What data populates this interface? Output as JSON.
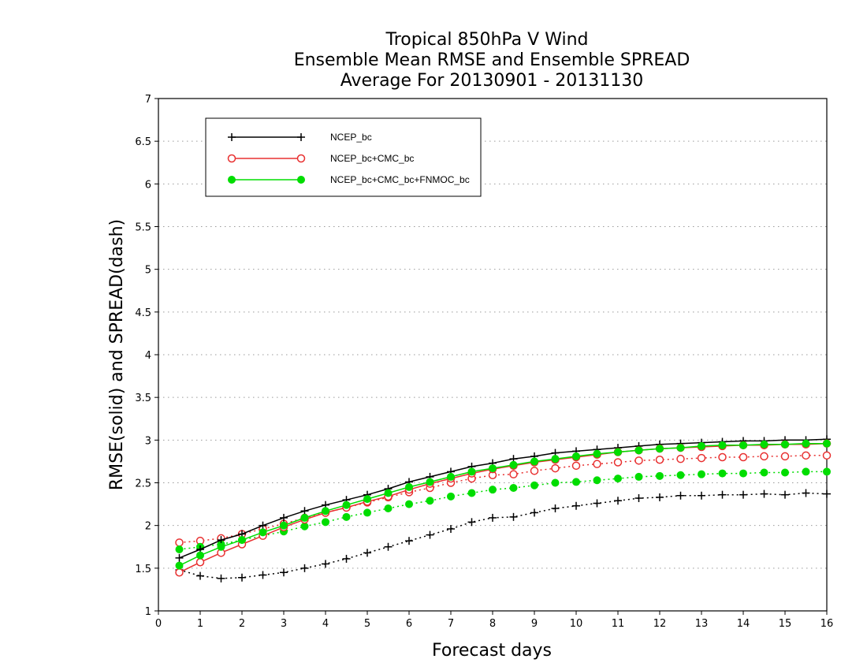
{
  "chart_data": {
    "type": "line",
    "title": [
      "Tropical 850hPa V Wind",
      "Ensemble Mean RMSE and Ensemble SPREAD",
      "Average For 20130901 - 20131130"
    ],
    "xlabel": "Forecast days",
    "ylabel": "RMSE(solid) and SPREAD(dash)",
    "xlim": [
      0,
      16
    ],
    "ylim": [
      1,
      7
    ],
    "xticks": [
      0,
      1,
      2,
      3,
      4,
      5,
      6,
      7,
      8,
      9,
      10,
      11,
      12,
      13,
      14,
      15,
      16
    ],
    "yticks": [
      1,
      1.5,
      2,
      2.5,
      3,
      3.5,
      4,
      4.5,
      5,
      5.5,
      6,
      6.5,
      7
    ],
    "ytick_labels": [
      "1",
      "1.5",
      "2",
      "2.5",
      "3",
      "3.5",
      "4",
      "4.5",
      "5",
      "5.5",
      "6",
      "6.5",
      "7"
    ],
    "grid": "horizontal dotted",
    "legend_position": "top-left",
    "x": [
      0.5,
      1,
      1.5,
      2,
      2.5,
      3,
      3.5,
      4,
      4.5,
      5,
      5.5,
      6,
      6.5,
      7,
      7.5,
      8,
      8.5,
      9,
      9.5,
      10,
      10.5,
      11,
      11.5,
      12,
      12.5,
      13,
      13.5,
      14,
      14.5,
      15,
      15.5,
      16
    ],
    "series": [
      {
        "name": "NCEP_bc",
        "color": "#000000",
        "marker": "plus",
        "rmse": [
          1.62,
          1.72,
          1.83,
          1.9,
          2.0,
          2.09,
          2.17,
          2.24,
          2.3,
          2.36,
          2.43,
          2.51,
          2.57,
          2.63,
          2.69,
          2.73,
          2.78,
          2.81,
          2.85,
          2.87,
          2.89,
          2.91,
          2.93,
          2.95,
          2.96,
          2.97,
          2.98,
          2.99,
          2.99,
          3.0,
          3.0,
          3.01
        ],
        "spread": [
          1.48,
          1.41,
          1.38,
          1.39,
          1.42,
          1.45,
          1.5,
          1.55,
          1.61,
          1.68,
          1.75,
          1.82,
          1.89,
          1.96,
          2.04,
          2.09,
          2.1,
          2.15,
          2.2,
          2.23,
          2.26,
          2.29,
          2.32,
          2.33,
          2.35,
          2.35,
          2.36,
          2.36,
          2.37,
          2.36,
          2.38,
          2.37
        ]
      },
      {
        "name": "NCEP_bc+CMC_bc",
        "color": "#e83030",
        "marker": "open-circle",
        "rmse": [
          1.45,
          1.57,
          1.68,
          1.78,
          1.88,
          1.98,
          2.07,
          2.15,
          2.21,
          2.28,
          2.34,
          2.42,
          2.49,
          2.55,
          2.61,
          2.66,
          2.7,
          2.74,
          2.77,
          2.8,
          2.83,
          2.86,
          2.88,
          2.9,
          2.91,
          2.92,
          2.93,
          2.94,
          2.94,
          2.95,
          2.95,
          2.96
        ],
        "spread": [
          1.8,
          1.82,
          1.85,
          1.9,
          1.96,
          2.02,
          2.09,
          2.15,
          2.21,
          2.27,
          2.33,
          2.39,
          2.44,
          2.5,
          2.55,
          2.59,
          2.6,
          2.64,
          2.67,
          2.7,
          2.72,
          2.74,
          2.76,
          2.77,
          2.78,
          2.79,
          2.8,
          2.8,
          2.81,
          2.81,
          2.82,
          2.82
        ]
      },
      {
        "name": "NCEP_bc+CMC_bc+FNMOC_bc",
        "color": "#00dd00",
        "marker": "filled-circle",
        "rmse": [
          1.53,
          1.65,
          1.75,
          1.83,
          1.92,
          2.0,
          2.09,
          2.17,
          2.24,
          2.31,
          2.38,
          2.45,
          2.51,
          2.57,
          2.63,
          2.67,
          2.71,
          2.75,
          2.78,
          2.81,
          2.84,
          2.86,
          2.88,
          2.9,
          2.91,
          2.93,
          2.94,
          2.94,
          2.95,
          2.95,
          2.96,
          2.96
        ],
        "spread": [
          1.72,
          1.75,
          1.78,
          1.83,
          1.88,
          1.93,
          1.99,
          2.04,
          2.1,
          2.15,
          2.2,
          2.25,
          2.29,
          2.34,
          2.38,
          2.42,
          2.44,
          2.47,
          2.5,
          2.51,
          2.53,
          2.55,
          2.57,
          2.58,
          2.59,
          2.6,
          2.61,
          2.61,
          2.62,
          2.62,
          2.63,
          2.63
        ]
      }
    ]
  }
}
